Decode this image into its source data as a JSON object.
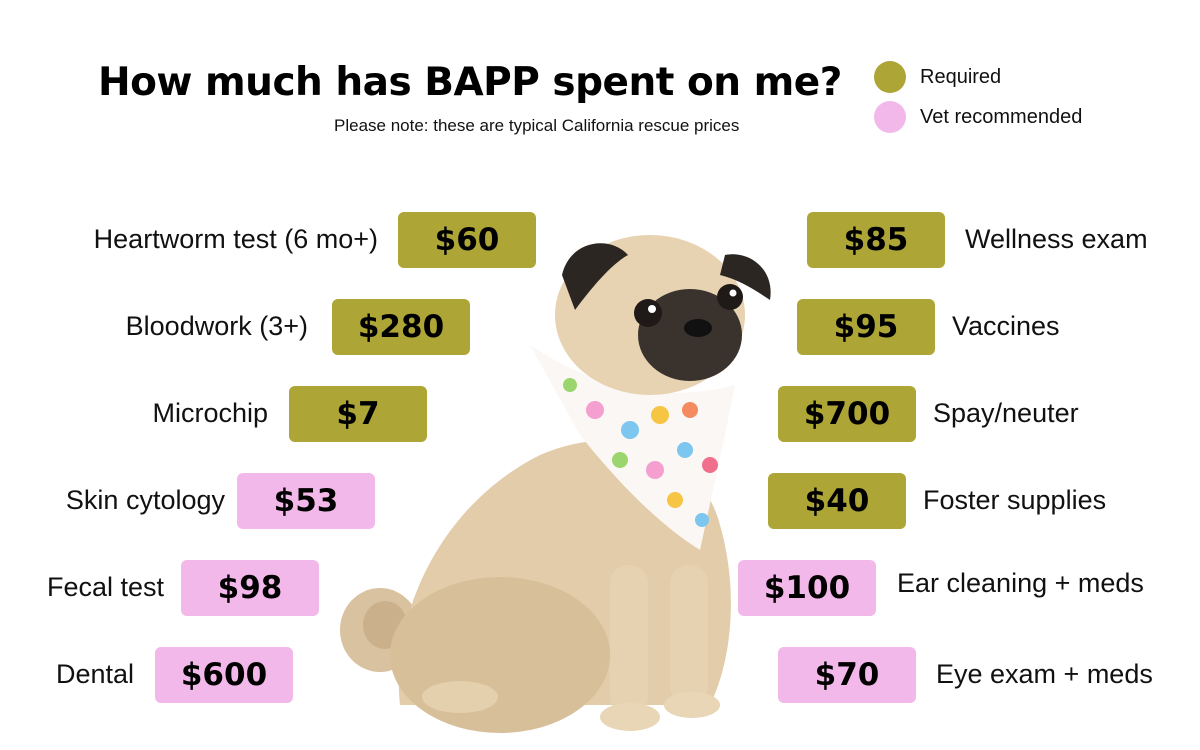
{
  "header": {
    "title": "How much has BAPP spent on me?",
    "subtitle": "Please note: these are typical California rescue prices"
  },
  "legend": {
    "required": {
      "label": "Required",
      "color": "#ada535"
    },
    "recommended": {
      "label": "Vet recommended",
      "color": "#f3b8ea"
    }
  },
  "left_costs": [
    {
      "label": "Heartworm test (6 mo+)",
      "price": "$60",
      "type": "required"
    },
    {
      "label": "Bloodwork (3+)",
      "price": "$280",
      "type": "required"
    },
    {
      "label": "Microchip",
      "price": "$7",
      "type": "required"
    },
    {
      "label": "Skin cytology",
      "price": "$53",
      "type": "recommended"
    },
    {
      "label": "Fecal test",
      "price": "$98",
      "type": "recommended"
    },
    {
      "label": "Dental",
      "price": "$600",
      "type": "recommended"
    }
  ],
  "right_costs": [
    {
      "label": "Wellness exam",
      "price": "$85",
      "type": "required"
    },
    {
      "label": "Vaccines",
      "price": "$95",
      "type": "required"
    },
    {
      "label": "Spay/neuter",
      "price": "$700",
      "type": "required"
    },
    {
      "label": "Foster supplies",
      "price": "$40",
      "type": "required"
    },
    {
      "label": "Ear cleaning + meds",
      "price": "$100",
      "type": "recommended"
    },
    {
      "label": "Eye exam + meds",
      "price": "$70",
      "type": "recommended"
    }
  ],
  "image": {
    "subject": "pug-with-bandana"
  }
}
